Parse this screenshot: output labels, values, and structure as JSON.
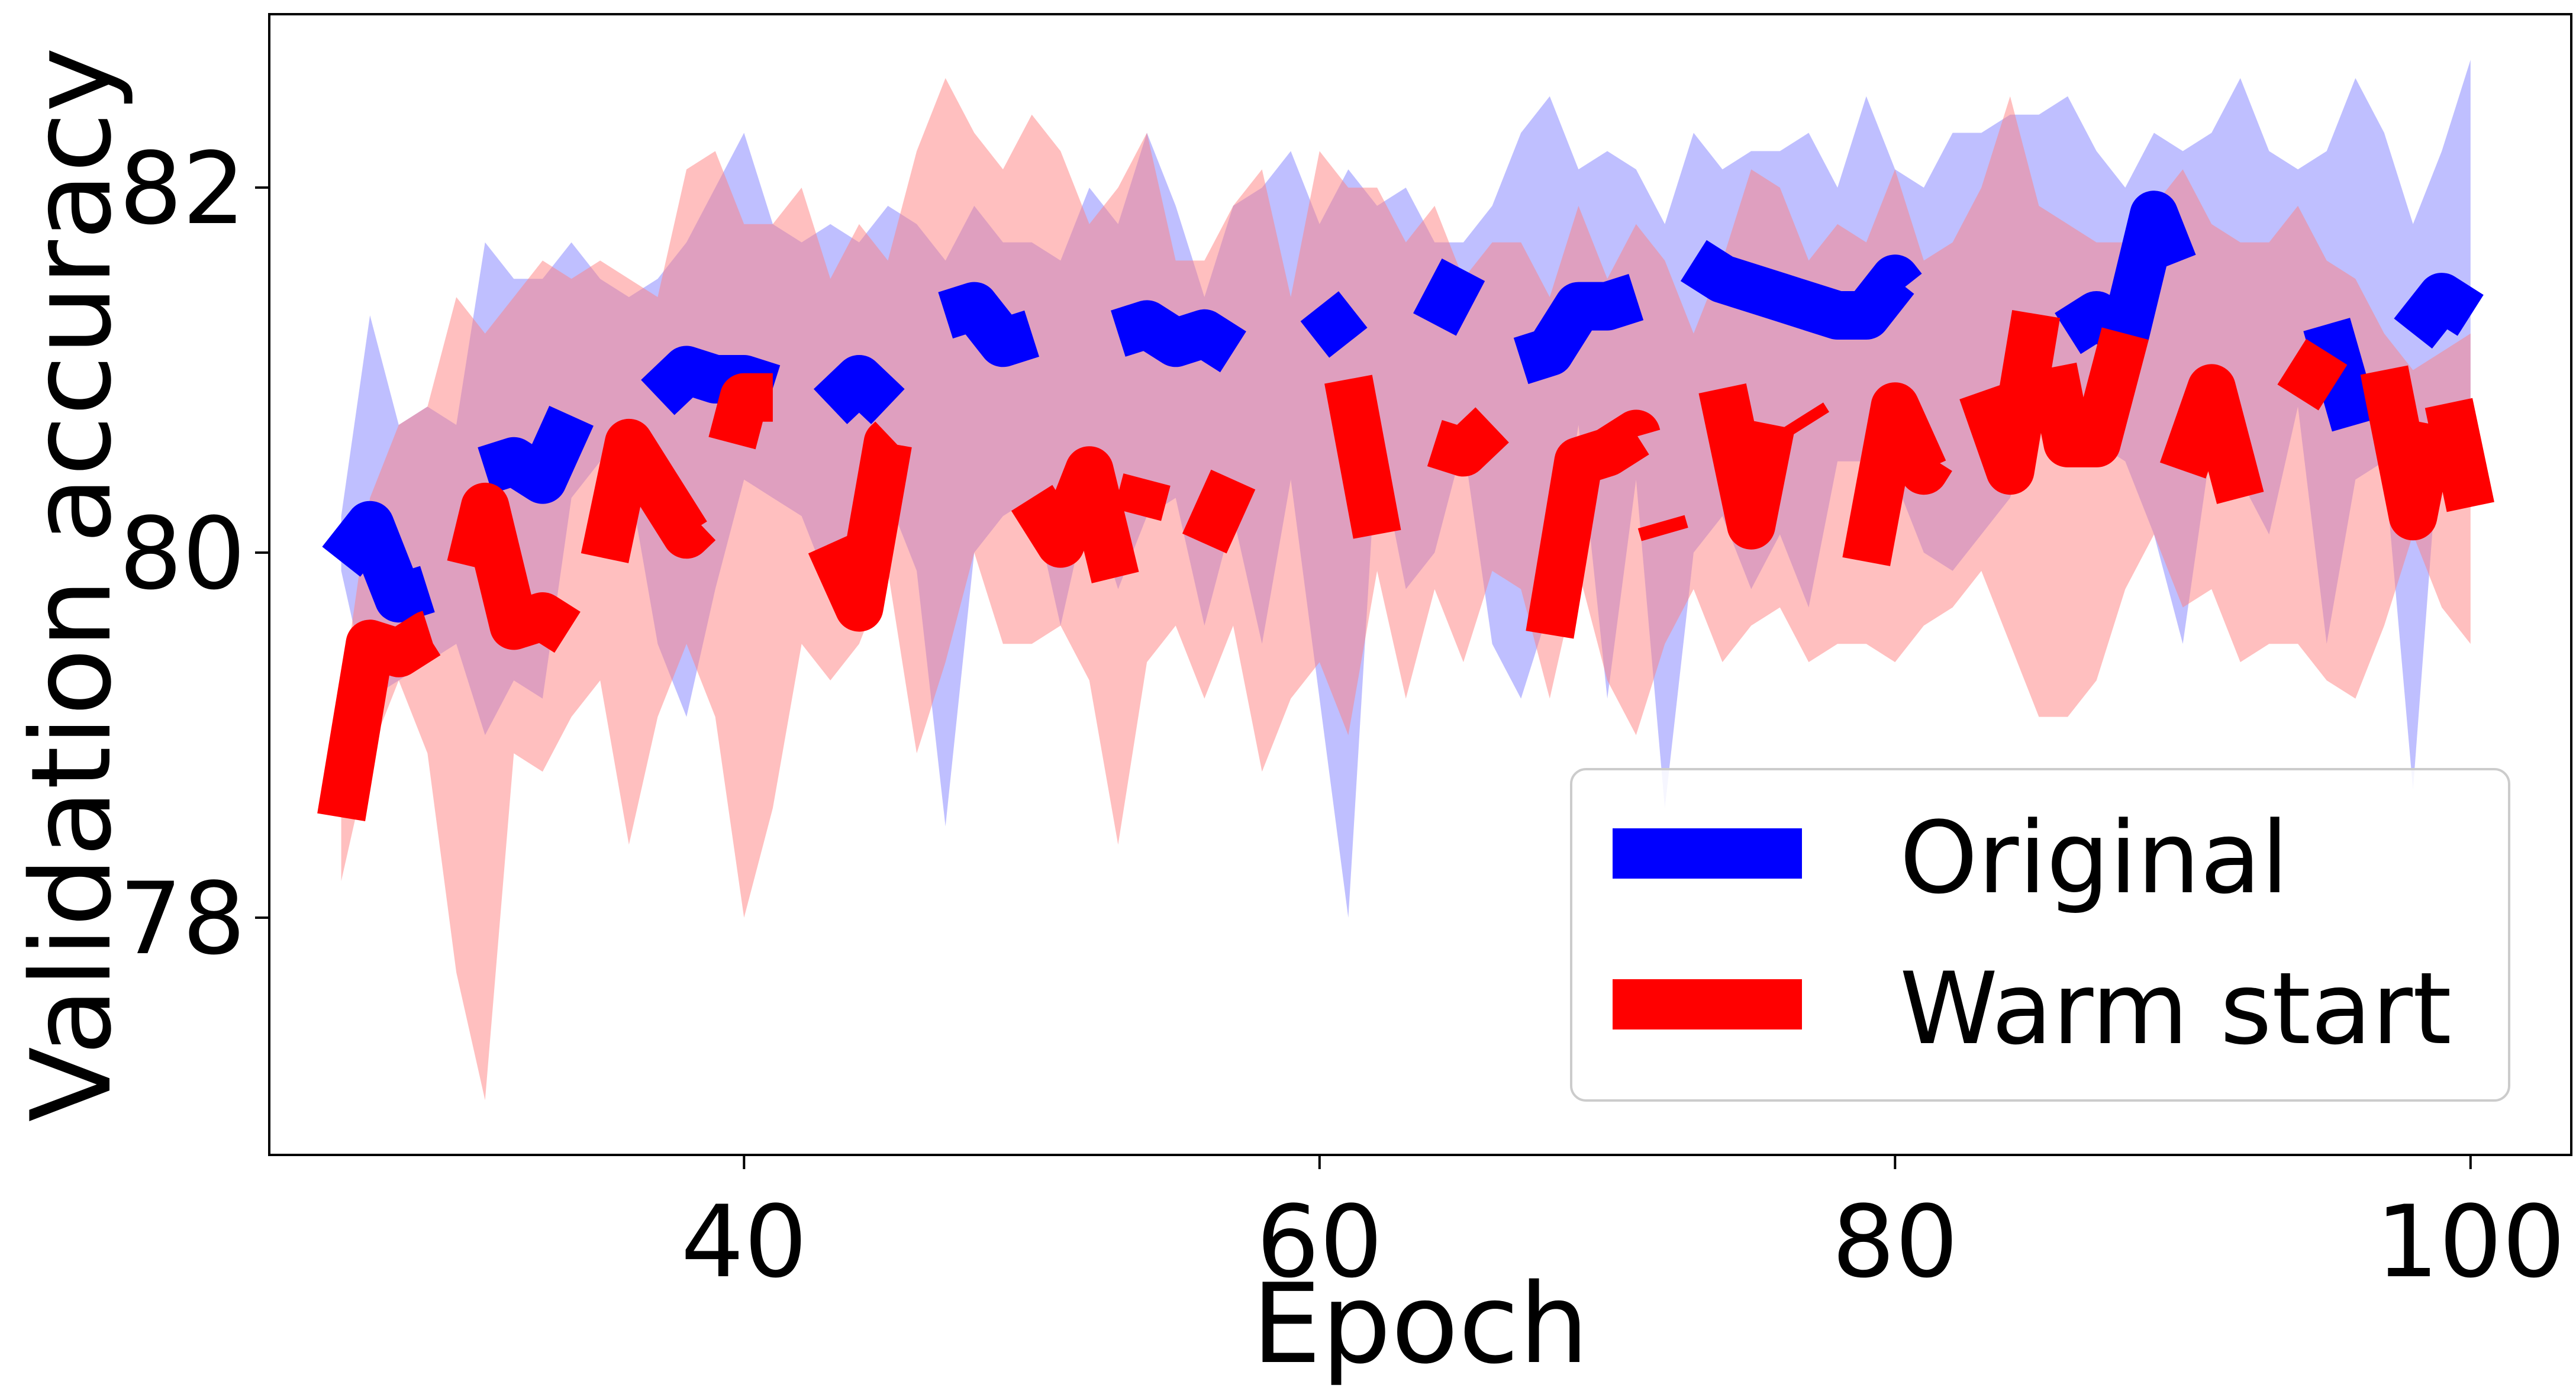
{
  "chart_data": {
    "type": "line",
    "title": "",
    "xlabel": "Epoch",
    "ylabel": "Validation accuracy",
    "xlim": [
      23.5,
      103.5
    ],
    "ylim": [
      76.7,
      82.95
    ],
    "xticks": [
      40,
      60,
      80,
      100
    ],
    "yticks": [
      78,
      80,
      82
    ],
    "legend": {
      "position": "lower right"
    },
    "grid": false,
    "x": [
      26,
      27,
      28,
      29,
      30,
      31,
      32,
      33,
      34,
      35,
      36,
      37,
      38,
      39,
      40,
      41,
      42,
      43,
      44,
      45,
      46,
      47,
      48,
      49,
      50,
      51,
      52,
      53,
      54,
      55,
      56,
      57,
      58,
      59,
      60,
      61,
      62,
      63,
      64,
      65,
      66,
      67,
      68,
      69,
      70,
      71,
      72,
      73,
      74,
      75,
      76,
      77,
      78,
      79,
      80,
      81,
      82,
      83,
      84,
      85,
      86,
      87,
      88,
      89,
      90,
      91,
      92,
      93,
      94,
      95,
      96,
      97,
      98,
      99,
      100
    ],
    "series": [
      {
        "name": "Original",
        "color": "#0000ff",
        "band_color": "#8080ff",
        "values": [
          79.95,
          80.15,
          79.75,
          79.8,
          null,
          80.45,
          80.5,
          80.4,
          80.75,
          null,
          null,
          80.85,
          81.0,
          80.95,
          80.95,
          80.9,
          null,
          80.8,
          80.95,
          80.8,
          null,
          81.3,
          81.35,
          81.15,
          81.2,
          null,
          null,
          81.2,
          81.25,
          81.15,
          81.2,
          81.1,
          null,
          null,
          81.35,
          81.15,
          null,
          null,
          81.25,
          81.55,
          null,
          81.05,
          81.1,
          81.35,
          81.35,
          81.4,
          null,
          81.6,
          81.5,
          81.45,
          81.4,
          81.35,
          81.3,
          81.3,
          81.5,
          81.3,
          81.25,
          null,
          null,
          null,
          81.2,
          81.3,
          81.2,
          81.85,
          81.45,
          81.45,
          81.4,
          null,
          null,
          81.25,
          80.7,
          null,
          81.2,
          81.4,
          81.3
        ],
        "lower": [
          79.9,
          79.2,
          79.3,
          79.4,
          79.5,
          79.0,
          79.3,
          79.2,
          80.3,
          80.5,
          80.4,
          79.5,
          79.1,
          79.8,
          80.4,
          80.3,
          80.2,
          79.8,
          79.9,
          80.3,
          79.9,
          78.5,
          80.0,
          80.2,
          80.3,
          79.6,
          80.3,
          79.8,
          80.2,
          80.3,
          79.6,
          80.2,
          79.5,
          80.4,
          79.2,
          78.0,
          80.6,
          79.8,
          80.0,
          80.6,
          79.5,
          79.2,
          79.7,
          80.7,
          79.2,
          80.4,
          78.6,
          80.0,
          80.2,
          79.8,
          80.1,
          79.7,
          80.5,
          80.5,
          80.4,
          80.0,
          79.9,
          80.1,
          80.3,
          80.8,
          80.7,
          80.6,
          80.5,
          80.1,
          79.5,
          80.6,
          80.4,
          80.1,
          80.8,
          79.5,
          80.4,
          80.5,
          78.7,
          80.8,
          80.5
        ],
        "upper": [
          80.2,
          81.3,
          80.7,
          80.8,
          80.7,
          81.7,
          81.5,
          81.5,
          81.7,
          81.5,
          81.4,
          81.5,
          81.7,
          82.0,
          82.3,
          81.8,
          81.7,
          81.8,
          81.7,
          81.9,
          81.8,
          81.6,
          81.9,
          81.7,
          81.7,
          81.6,
          82.0,
          81.8,
          82.3,
          81.9,
          81.4,
          81.9,
          82.0,
          82.2,
          81.8,
          82.1,
          81.9,
          82.0,
          81.7,
          81.7,
          81.9,
          82.3,
          82.5,
          82.1,
          82.2,
          82.1,
          81.8,
          82.3,
          82.1,
          82.2,
          82.2,
          82.3,
          82.0,
          82.5,
          82.1,
          82.0,
          82.3,
          82.3,
          82.4,
          82.4,
          82.5,
          82.2,
          82.0,
          82.3,
          82.2,
          82.3,
          82.6,
          82.2,
          82.1,
          82.2,
          82.6,
          82.3,
          81.8,
          82.2,
          82.7
        ]
      },
      {
        "name": "Warm start",
        "color": "#ff0000",
        "band_color": "#ff8080",
        "values": [
          78.55,
          79.5,
          79.45,
          79.55,
          79.6,
          80.25,
          79.6,
          79.65,
          79.55,
          79.85,
          80.6,
          80.35,
          80.1,
          80.25,
          80.85,
          80.85,
          null,
          80.05,
          79.7,
          80.6,
          80.75,
          80.9,
          null,
          null,
          80.3,
          80.05,
          80.45,
          79.8,
          80.4,
          null,
          80.05,
          80.4,
          null,
          80.05,
          null,
          80.95,
          80.1,
          null,
          80.6,
          80.55,
          80.7,
          null,
          79.55,
          80.5,
          80.55,
          80.65,
          80.1,
          null,
          80.9,
          80.15,
          80.95,
          80.7,
          null,
          79.95,
          80.8,
          80.45,
          80.7,
          80.9,
          80.45,
          81.4,
          80.6,
          80.6,
          81.2,
          null,
          80.45,
          80.9,
          80.3,
          null,
          80.85,
          81.1,
          null,
          81.0,
          80.2,
          81.0,
          80.25
        ],
        "lower": [
          78.2,
          78.9,
          79.3,
          78.9,
          77.7,
          77.0,
          78.9,
          78.8,
          79.1,
          79.3,
          78.4,
          79.1,
          79.5,
          79.1,
          78.0,
          78.6,
          79.5,
          79.3,
          79.5,
          79.9,
          78.9,
          79.4,
          80.0,
          79.5,
          79.5,
          79.6,
          79.3,
          78.4,
          79.4,
          79.6,
          79.2,
          79.6,
          78.8,
          79.2,
          79.4,
          79.0,
          79.9,
          79.2,
          79.8,
          79.4,
          79.9,
          79.8,
          79.2,
          79.9,
          79.3,
          79.0,
          79.5,
          79.8,
          79.4,
          79.6,
          79.7,
          79.4,
          79.5,
          79.5,
          79.4,
          79.6,
          79.7,
          79.9,
          79.5,
          79.1,
          79.1,
          79.3,
          79.8,
          80.1,
          79.7,
          79.8,
          79.4,
          79.5,
          79.5,
          79.3,
          79.2,
          79.6,
          80.1,
          79.7,
          79.5
        ],
        "upper": [
          79.2,
          80.3,
          80.7,
          80.8,
          81.4,
          81.2,
          81.4,
          81.6,
          81.5,
          81.6,
          81.5,
          81.4,
          82.1,
          82.2,
          81.8,
          81.8,
          82.0,
          81.5,
          81.8,
          81.6,
          82.2,
          82.6,
          82.3,
          82.1,
          82.4,
          82.2,
          81.8,
          82.0,
          82.3,
          81.6,
          81.6,
          81.9,
          82.1,
          81.4,
          82.2,
          82.0,
          82.0,
          81.7,
          81.9,
          81.5,
          81.7,
          81.7,
          81.4,
          81.9,
          81.5,
          81.8,
          81.6,
          81.2,
          81.6,
          82.1,
          82.0,
          81.6,
          81.8,
          81.7,
          82.1,
          81.6,
          81.7,
          82.0,
          82.5,
          81.9,
          81.8,
          81.7,
          81.7,
          81.9,
          82.1,
          81.8,
          81.7,
          81.7,
          81.9,
          81.6,
          81.5,
          81.2,
          81.0,
          81.1,
          81.2
        ]
      }
    ]
  }
}
